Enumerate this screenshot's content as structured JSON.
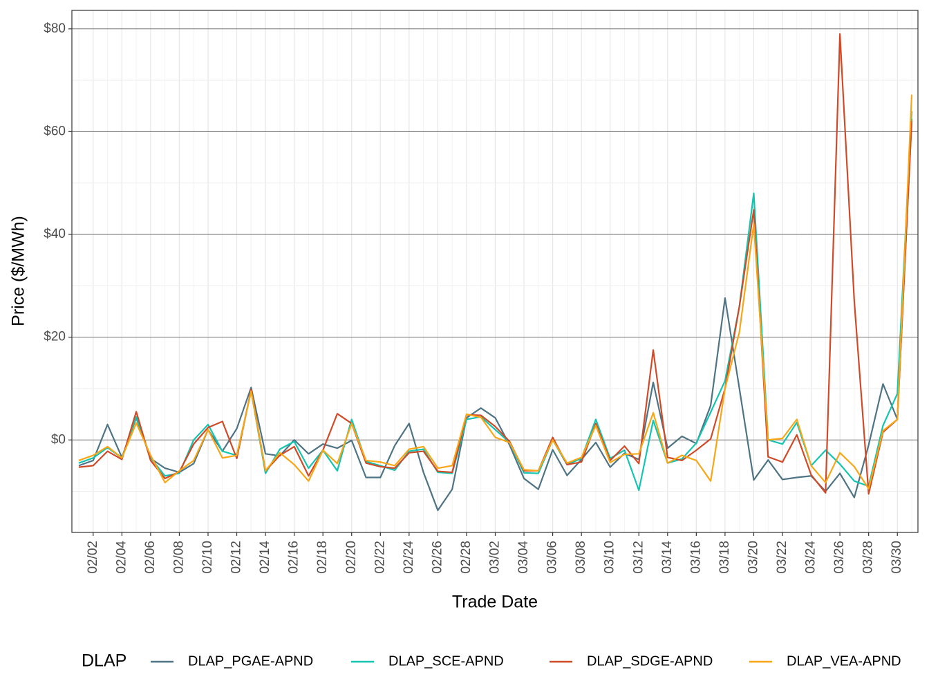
{
  "chart_data": {
    "type": "line",
    "x_label": "Trade Date",
    "y_label": "Price ($/MWh)",
    "categories": [
      null,
      "02/02",
      null,
      "02/04",
      null,
      "02/06",
      null,
      "02/08",
      null,
      "02/10",
      null,
      "02/12",
      null,
      "02/14",
      null,
      "02/16",
      null,
      "02/18",
      null,
      "02/20",
      null,
      "02/22",
      null,
      "02/24",
      null,
      "02/26",
      null,
      "02/28",
      null,
      "03/02",
      null,
      "03/04",
      null,
      "03/06",
      null,
      "03/08",
      null,
      "03/10",
      null,
      "03/12",
      null,
      "03/14",
      null,
      "03/16",
      null,
      "03/18",
      null,
      "03/20",
      null,
      "03/22",
      null,
      "03/24",
      null,
      "03/26",
      null,
      "03/28",
      null,
      "03/30",
      null
    ],
    "series": [
      {
        "name": "DLAP_PGAE-APND",
        "color": "#4e7384",
        "values": [
          -5,
          -4,
          3,
          -3.4,
          4.3,
          -3.6,
          -5.5,
          -6.3,
          -4.6,
          2,
          -2.2,
          2.2,
          10.2,
          -2.7,
          -3.1,
          0,
          -2.7,
          -0.8,
          -1.6,
          -0.1,
          -7.3,
          -7.3,
          -1.1,
          3.2,
          -6.3,
          -13.7,
          -9.6,
          4.3,
          6.2,
          4.3,
          -1,
          -7.5,
          -9.6,
          -1.9,
          -6.9,
          -3.8,
          -0.5,
          -5.3,
          -2.6,
          -3.8,
          11.2,
          -1.6,
          0.7,
          -0.7,
          6.7,
          27.6,
          10,
          -7.8,
          -3.9,
          -7.7,
          -7.3,
          -7,
          -10,
          -6.5,
          -11.2,
          -1,
          10.9,
          4,
          62.5
        ]
      },
      {
        "name": "DLAP_SCE-APND",
        "color": "#14c4b0",
        "values": [
          -4.5,
          -3.5,
          -1.5,
          -3.5,
          4.5,
          -3.5,
          -7,
          -6.5,
          0,
          3,
          -2.2,
          -3,
          9.5,
          -6.5,
          -1.8,
          -0.3,
          -5.5,
          -2,
          -6,
          4,
          -4.2,
          -5,
          -5.9,
          -2.2,
          -1.8,
          -6.3,
          -6.5,
          4,
          4.5,
          2,
          -0.5,
          -6.4,
          -6.5,
          0,
          -4.8,
          -3.6,
          4,
          -3.6,
          -2,
          -9.8,
          3.8,
          -4.5,
          -3.7,
          -0.6,
          5.4,
          11.5,
          26,
          48,
          0,
          -0.8,
          3.4,
          -5,
          -2,
          -4.7,
          -8,
          -9,
          2.8,
          9,
          64
        ]
      },
      {
        "name": "DLAP_SDGE-APND",
        "color": "#d04a27",
        "values": [
          -5.3,
          -5,
          -2.2,
          -3.8,
          5.5,
          -4,
          -7.5,
          -6.2,
          -0.8,
          2.4,
          3.6,
          -3.6,
          9.8,
          -6,
          -3,
          -1.3,
          -7,
          -2,
          5.1,
          3.2,
          -4.5,
          -5.2,
          -5.5,
          -2.5,
          -2.2,
          -6.1,
          -6.3,
          4.9,
          4.8,
          2.6,
          -0.3,
          -6,
          -6,
          0.5,
          -4.8,
          -4.3,
          3.2,
          -4,
          -1.2,
          -4.6,
          17.5,
          -3.4,
          -4,
          -2,
          0.2,
          10,
          26,
          44.8,
          -3.3,
          -4.3,
          1,
          -6.8,
          -10.3,
          79,
          27,
          -10.5,
          1.5,
          4,
          62.1
        ]
      },
      {
        "name": "DLAP_VEA-APND",
        "color": "#f7a616",
        "values": [
          -4,
          -3,
          -1.3,
          -3.5,
          3.3,
          -3,
          -8.3,
          -6,
          -4,
          2,
          -3.5,
          -3,
          9.5,
          -6,
          -2.5,
          -4.8,
          -8,
          -2,
          -4.6,
          3.2,
          -4,
          -4.3,
          -5,
          -1.8,
          -1.3,
          -5.5,
          -5,
          5,
          4.4,
          0.5,
          -0.5,
          -5.8,
          -6,
          0,
          -4.5,
          -3.4,
          2.8,
          -4.4,
          -2.8,
          -2.7,
          5.3,
          -4.5,
          -3,
          -4,
          -8,
          10,
          21,
          42,
          0,
          0.3,
          4,
          -5,
          -8.3,
          -2.5,
          -5.2,
          -9.5,
          1.8,
          4,
          67.2
        ]
      }
    ],
    "ylim": [
      -18,
      83.6
    ],
    "yticks": [
      {
        "value": 0,
        "label": "$0"
      },
      {
        "value": 20,
        "label": "$20"
      },
      {
        "value": 40,
        "label": "$40"
      },
      {
        "value": 60,
        "label": "$60"
      },
      {
        "value": 80,
        "label": "$80"
      }
    ],
    "grid": true,
    "legend": {
      "title": "DLAP",
      "position": "bottom"
    }
  }
}
